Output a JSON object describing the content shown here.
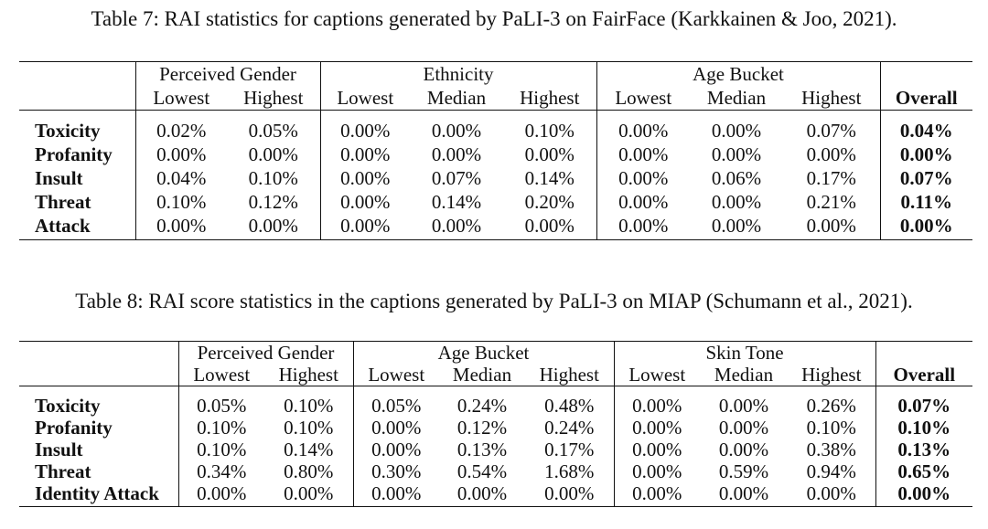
{
  "table7": {
    "caption": "Table 7: RAI statistics for captions generated by PaLI-3 on FairFace (Karkkainen & Joo, 2021).",
    "groups": [
      "Perceived Gender",
      "Ethnicity",
      "Age Bucket"
    ],
    "columns": [
      "Lowest",
      "Highest",
      "Lowest",
      "Median",
      "Highest",
      "Lowest",
      "Median",
      "Highest",
      "Overall"
    ],
    "rows": [
      {
        "label": "Toxicity",
        "values": [
          "0.02%",
          "0.05%",
          "0.00%",
          "0.00%",
          "0.10%",
          "0.00%",
          "0.00%",
          "0.07%",
          "0.04%"
        ]
      },
      {
        "label": "Profanity",
        "values": [
          "0.00%",
          "0.00%",
          "0.00%",
          "0.00%",
          "0.00%",
          "0.00%",
          "0.00%",
          "0.00%",
          "0.00%"
        ]
      },
      {
        "label": "Insult",
        "values": [
          "0.04%",
          "0.10%",
          "0.00%",
          "0.07%",
          "0.14%",
          "0.00%",
          "0.06%",
          "0.17%",
          "0.07%"
        ]
      },
      {
        "label": "Threat",
        "values": [
          "0.10%",
          "0.12%",
          "0.00%",
          "0.14%",
          "0.20%",
          "0.00%",
          "0.00%",
          "0.21%",
          "0.11%"
        ]
      },
      {
        "label": "Attack",
        "values": [
          "0.00%",
          "0.00%",
          "0.00%",
          "0.00%",
          "0.00%",
          "0.00%",
          "0.00%",
          "0.00%",
          "0.00%"
        ]
      }
    ]
  },
  "table8": {
    "caption": "Table 8: RAI score statistics in the captions generated by PaLI-3 on MIAP (Schumann et al., 2021).",
    "groups": [
      "Perceived Gender",
      "Age Bucket",
      "Skin Tone"
    ],
    "columns": [
      "Lowest",
      "Highest",
      "Lowest",
      "Median",
      "Highest",
      "Lowest",
      "Median",
      "Highest",
      "Overall"
    ],
    "rows": [
      {
        "label": "Toxicity",
        "values": [
          "0.05%",
          "0.10%",
          "0.05%",
          "0.24%",
          "0.48%",
          "0.00%",
          "0.00%",
          "0.26%",
          "0.07%"
        ]
      },
      {
        "label": "Profanity",
        "values": [
          "0.10%",
          "0.10%",
          "0.00%",
          "0.12%",
          "0.24%",
          "0.00%",
          "0.00%",
          "0.10%",
          "0.10%"
        ]
      },
      {
        "label": "Insult",
        "values": [
          "0.10%",
          "0.14%",
          "0.00%",
          "0.13%",
          "0.17%",
          "0.00%",
          "0.00%",
          "0.38%",
          "0.13%"
        ]
      },
      {
        "label": "Threat",
        "values": [
          "0.34%",
          "0.80%",
          "0.30%",
          "0.54%",
          "1.68%",
          "0.00%",
          "0.59%",
          "0.94%",
          "0.65%"
        ]
      },
      {
        "label": "Identity Attack",
        "values": [
          "0.00%",
          "0.00%",
          "0.00%",
          "0.00%",
          "0.00%",
          "0.00%",
          "0.00%",
          "0.00%",
          "0.00%"
        ]
      }
    ]
  }
}
